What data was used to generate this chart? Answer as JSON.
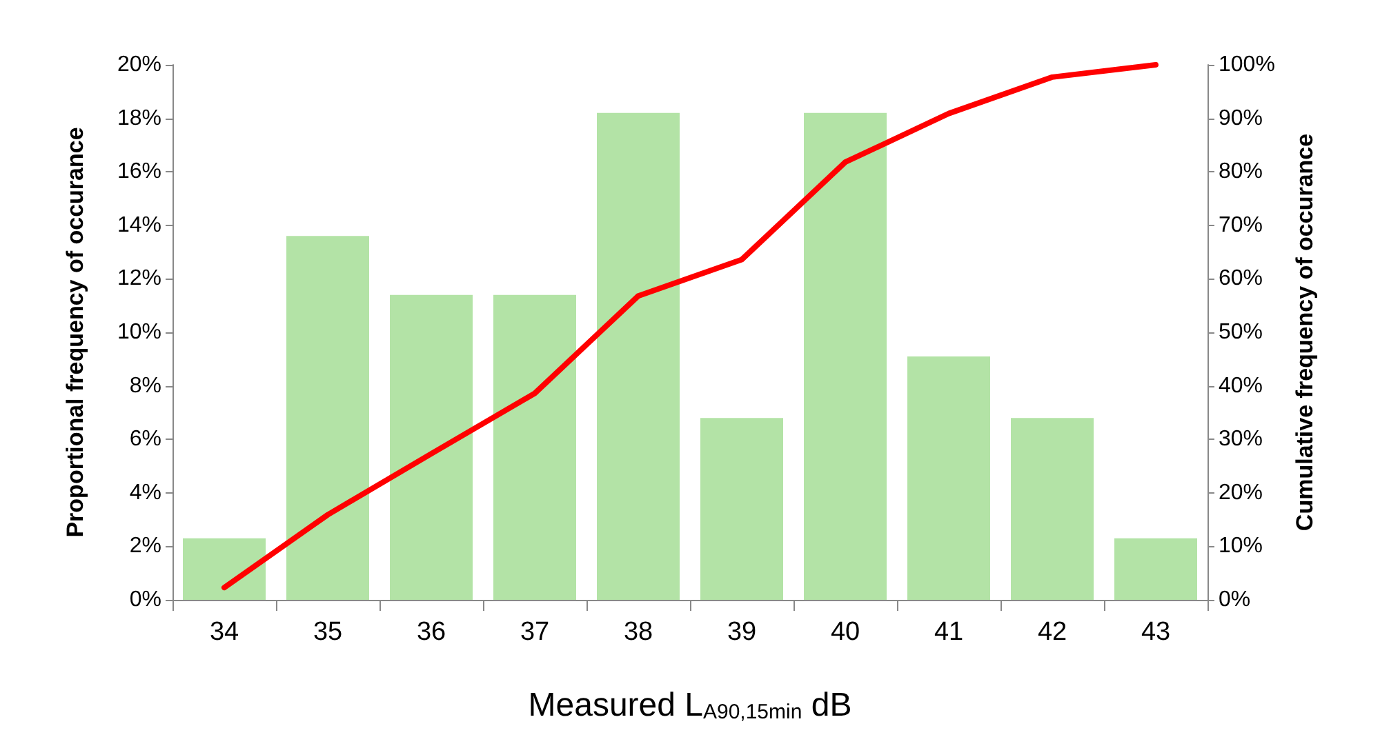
{
  "chart_data": {
    "type": "bar",
    "xlabel": "Measured L$_{A90,15min}$ dB",
    "ylabel": "Proportional frequency of occurance",
    "y2label": "Cumulative frequency of occurance",
    "categories": [
      "34",
      "35",
      "36",
      "37",
      "38",
      "39",
      "40",
      "41",
      "42",
      "43"
    ],
    "series": [
      {
        "color": "#b3e3a6",
        "values": [
          2.3,
          13.6,
          11.4,
          11.4,
          18.2,
          6.8,
          18.2,
          9.1,
          6.8,
          2.3
        ]
      },
      {
        "type": "line",
        "axis": "y2",
        "color": "#ff0000",
        "marker": "none",
        "line_style": "solid",
        "values": [
          2.3,
          15.9,
          27.3,
          38.6,
          56.8,
          63.6,
          81.8,
          90.9,
          97.7,
          100
        ]
      }
    ],
    "ylim": [
      0,
      20
    ],
    "yticks": [
      {
        "value": 0,
        "label": "0%"
      },
      {
        "value": 2,
        "label": "2%"
      },
      {
        "value": 4,
        "label": "4%"
      },
      {
        "value": 6,
        "label": "6%"
      },
      {
        "value": 8,
        "label": "8%"
      },
      {
        "value": 10,
        "label": "10%"
      },
      {
        "value": 12,
        "label": "12%"
      },
      {
        "value": 14,
        "label": "14%"
      },
      {
        "value": 16,
        "label": "16%"
      },
      {
        "value": 18,
        "label": "18%"
      },
      {
        "value": 20,
        "label": "20%"
      }
    ],
    "y2lim": [
      0,
      100
    ],
    "y2ticks": [
      {
        "value": 0,
        "label": "0%"
      },
      {
        "value": 10,
        "label": "10%"
      },
      {
        "value": 20,
        "label": "20%"
      },
      {
        "value": 30,
        "label": "30%"
      },
      {
        "value": 40,
        "label": "40%"
      },
      {
        "value": 50,
        "label": "50%"
      },
      {
        "value": 60,
        "label": "60%"
      },
      {
        "value": 70,
        "label": "70%"
      },
      {
        "value": 80,
        "label": "80%"
      },
      {
        "value": 90,
        "label": "90%"
      },
      {
        "value": 100,
        "label": "100%"
      }
    ],
    "grid": false
  }
}
